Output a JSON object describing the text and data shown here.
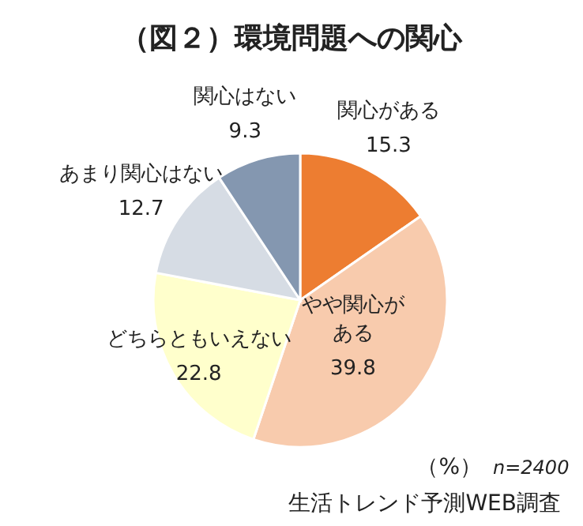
{
  "chart_data": {
    "type": "pie",
    "title": "（図２）環境問題への関心",
    "categories": [
      "関心がある",
      "やや関心がある",
      "どちらともいえない",
      "あまり関心はない",
      "関心はない"
    ],
    "values": [
      15.3,
      39.8,
      22.8,
      12.7,
      9.3
    ],
    "colors": [
      "#ed7d31",
      "#f8cbad",
      "#ffffcc",
      "#d6dce4",
      "#8497b0"
    ],
    "data_labels": true,
    "annotations": [
      "（%）",
      "n=2400",
      "生活トレンド予測WEB調査"
    ]
  }
}
